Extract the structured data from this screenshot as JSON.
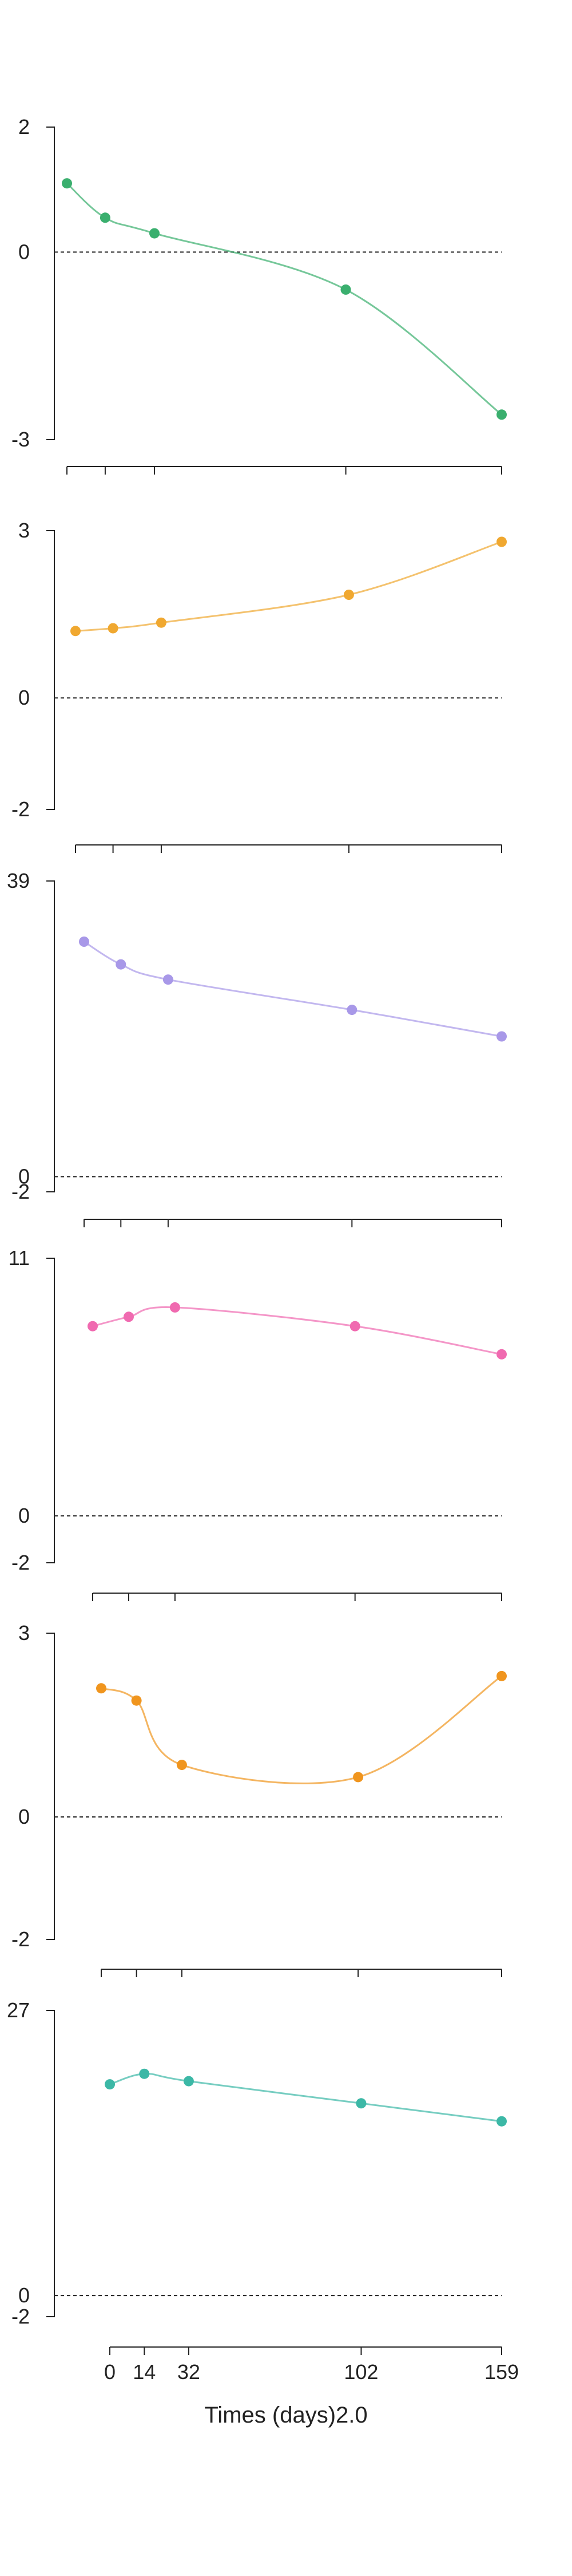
{
  "chart_data": [
    {
      "type": "line",
      "x": [
        0,
        14,
        32,
        102,
        159
      ],
      "values": [
        1.1,
        0.55,
        0.3,
        -0.6,
        -2.6
      ],
      "ylim": [
        -3,
        2
      ],
      "yticks": [
        "2",
        "0",
        "-3"
      ],
      "color": "#3aaf6e"
    },
    {
      "type": "line",
      "x": [
        0,
        14,
        32,
        102,
        159
      ],
      "values": [
        1.2,
        1.25,
        1.35,
        1.85,
        2.8
      ],
      "ylim": [
        -2,
        3
      ],
      "yticks": [
        "3",
        "0",
        "-2"
      ],
      "color": "#f0a830"
    },
    {
      "type": "line",
      "x": [
        0,
        14,
        32,
        102,
        159
      ],
      "values": [
        31,
        28,
        26,
        22,
        18.5
      ],
      "ylim": [
        -2,
        39
      ],
      "yticks": [
        "39",
        "0",
        "-2"
      ],
      "color": "#a898e8"
    },
    {
      "type": "line",
      "x": [
        0,
        14,
        32,
        102,
        159
      ],
      "values": [
        8.1,
        8.5,
        8.9,
        8.1,
        6.9
      ],
      "ylim": [
        -2,
        11
      ],
      "yticks": [
        "11",
        "0",
        "-2"
      ],
      "color": "#f06ab0"
    },
    {
      "type": "line",
      "x": [
        0,
        14,
        32,
        102,
        159
      ],
      "values": [
        2.1,
        1.9,
        0.85,
        0.65,
        2.3
      ],
      "ylim": [
        -2,
        3
      ],
      "yticks": [
        "3",
        "0",
        "-2"
      ],
      "color": "#f0951e"
    },
    {
      "type": "line",
      "x": [
        0,
        14,
        32,
        102,
        159
      ],
      "values": [
        20,
        21,
        20.3,
        18.2,
        16.5
      ],
      "ylim": [
        -2,
        27
      ],
      "yticks": [
        "27",
        "0",
        "-2"
      ],
      "color": "#3cb8a6"
    }
  ],
  "xaxis": {
    "label": "Times (days)2.0",
    "tick_labels": [
      "0",
      "14",
      "32",
      "102",
      "159"
    ]
  }
}
